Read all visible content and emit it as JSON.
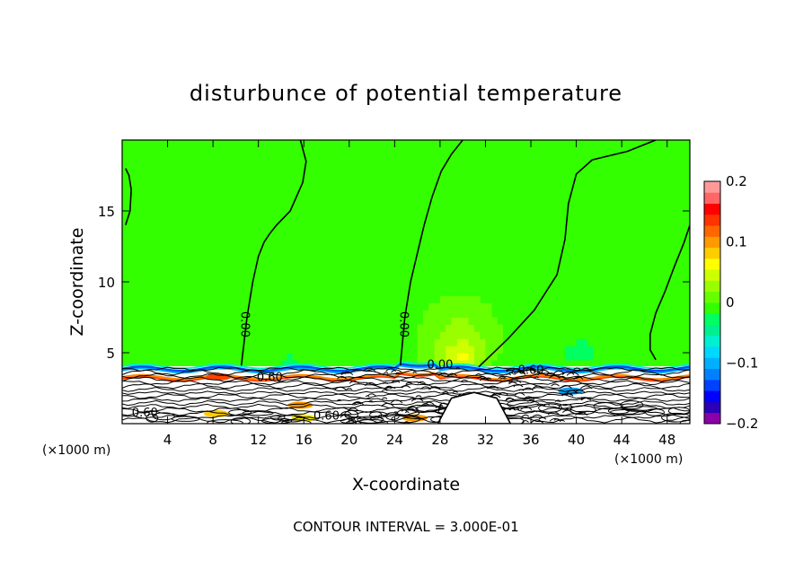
{
  "chart_data": {
    "type": "heatmap",
    "title": "disturbunce of potential temperature",
    "xlabel": "X-coordinate",
    "ylabel": "Z-coordinate",
    "x_unit_left": "(×1000 m)",
    "x_unit_right": "(×1000 m)",
    "xlim": [
      0,
      50
    ],
    "ylim": [
      0,
      20
    ],
    "x_ticks": [
      "4",
      "8",
      "12",
      "16",
      "20",
      "24",
      "28",
      "32",
      "36",
      "40",
      "44",
      "48"
    ],
    "x_tick_values": [
      4,
      8,
      12,
      16,
      20,
      24,
      28,
      32,
      36,
      40,
      44,
      48
    ],
    "y_ticks": [
      "5",
      "10",
      "15"
    ],
    "y_tick_values": [
      5,
      10,
      15
    ],
    "colorbar": {
      "range": [
        -0.2,
        0.2
      ],
      "labels": [
        "0.2",
        "0.1",
        "0",
        "−0.1",
        "−0.2"
      ],
      "label_values": [
        0.2,
        0.1,
        0,
        -0.1,
        -0.2
      ],
      "colors": [
        "#8b00a8",
        "#2a00b8",
        "#0000ff",
        "#0040ff",
        "#0080ff",
        "#00b0ff",
        "#00d8ff",
        "#00f0d0",
        "#00f090",
        "#00ff60",
        "#33ff00",
        "#66ff00",
        "#99ff00",
        "#ccff00",
        "#ffff00",
        "#ffcc00",
        "#ff9900",
        "#ff6600",
        "#ff3300",
        "#ff0000",
        "#ff6666",
        "#ff9999"
      ]
    },
    "contour_labels": [
      {
        "text": "0.00",
        "x": 10.5,
        "z": 7.0,
        "rotate": true
      },
      {
        "text": "0.00",
        "x": 24.5,
        "z": 7.0,
        "rotate": true
      },
      {
        "text": "0.00",
        "x": 28.0,
        "z": 3.9,
        "rotate": false
      },
      {
        "text": "0.60",
        "x": 13.0,
        "z": 3.0,
        "rotate": false
      },
      {
        "text": "0.60",
        "x": 36.0,
        "z": 3.5,
        "rotate": false
      },
      {
        "text": "0.60",
        "x": 2.0,
        "z": 0.5,
        "rotate": false
      },
      {
        "text": "0.60",
        "x": 18.0,
        "z": 0.3,
        "rotate": false
      }
    ],
    "zero_contours": [
      {
        "x": [
          10.5,
          11.0,
          11.5,
          12.0,
          12.5,
          13.0,
          13.6,
          14.8,
          15.9,
          16.2,
          15.7
        ],
        "z": [
          4.1,
          7.5,
          10.0,
          11.8,
          12.8,
          13.4,
          14.0,
          15.0,
          17.0,
          18.5,
          20.0
        ]
      },
      {
        "x": [
          24.5,
          24.9,
          25.4,
          26.0,
          26.6,
          27.3,
          28.1,
          29.0,
          30.0
        ],
        "z": [
          4.1,
          7.5,
          10.0,
          12.0,
          14.0,
          16.0,
          17.8,
          19.0,
          20.0
        ]
      },
      {
        "x": [
          31.4,
          34.0,
          36.3,
          38.3,
          39.0,
          39.3,
          40.0,
          41.4,
          44.5,
          47.0
        ],
        "z": [
          4.0,
          6.0,
          8.0,
          10.5,
          13.0,
          15.5,
          17.6,
          18.6,
          19.2,
          20.0
        ]
      },
      {
        "x": [
          47.0,
          46.5,
          46.5,
          47.0,
          47.8,
          48.6,
          49.5,
          50.0
        ],
        "z": [
          4.5,
          5.2,
          6.3,
          7.8,
          9.3,
          11.0,
          12.8,
          14.0
        ]
      },
      {
        "x": [
          0.3,
          0.7,
          0.8,
          0.6,
          0.3
        ],
        "z": [
          14.0,
          15.0,
          16.5,
          17.5,
          18.0
        ]
      }
    ],
    "bumps": [
      {
        "x": 14.8,
        "z": 4.4,
        "sx": 1.2,
        "sz": 0.8,
        "a": -0.025
      },
      {
        "x": 29.7,
        "z": 5.5,
        "sx": 2.7,
        "sz": 2.6,
        "a": 0.03
      },
      {
        "x": 30.0,
        "z": 4.6,
        "sx": 1.4,
        "sz": 1.0,
        "a": 0.035
      },
      {
        "x": 40.5,
        "z": 5.2,
        "sx": 2.3,
        "sz": 1.3,
        "a": -0.024
      },
      {
        "x": 36.5,
        "z": 4.3,
        "sx": 3.5,
        "sz": 0.7,
        "a": -0.012
      }
    ],
    "mountain": {
      "x": [
        27.8,
        29.0,
        31.0,
        33.0,
        34.2
      ],
      "z": [
        0,
        1.8,
        2.2,
        1.8,
        0
      ]
    },
    "contour_interval": "CONTOUR INTERVAL = 3.000E-01"
  }
}
